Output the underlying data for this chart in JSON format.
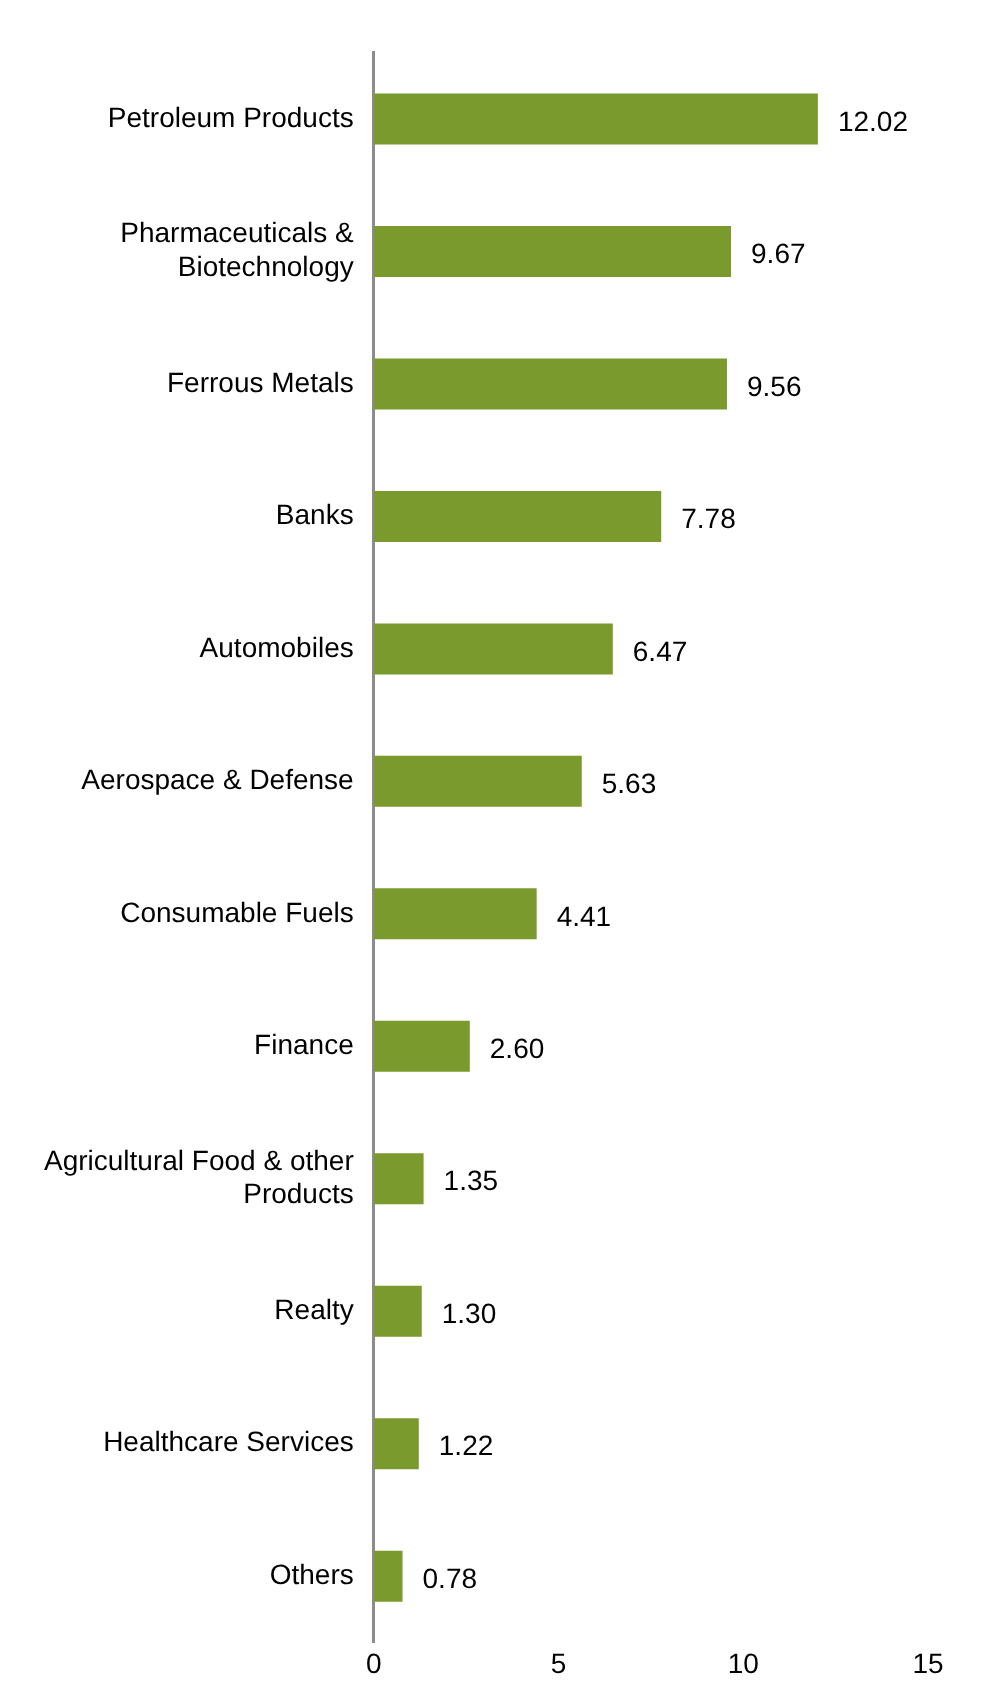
{
  "chart_data": {
    "type": "bar",
    "orientation": "horizontal",
    "categories": [
      "Petroleum Products",
      "Pharmaceuticals & Biotechnology",
      "Ferrous Metals",
      "Banks",
      "Automobiles",
      "Aerospace & Defense",
      "Consumable Fuels",
      "Finance",
      "Agricultural Food & other Products",
      "Realty",
      "Healthcare Services",
      "Others"
    ],
    "values": [
      12.02,
      9.67,
      9.56,
      7.78,
      6.47,
      5.63,
      4.41,
      2.6,
      1.35,
      1.3,
      1.22,
      0.78
    ],
    "value_labels": [
      "12.02",
      "9.67",
      "9.56",
      "7.78",
      "6.47",
      "5.63",
      "4.41",
      "2.60",
      "1.35",
      "1.30",
      "1.22",
      "0.78"
    ],
    "color": "#7b9a2e",
    "xlim": [
      0,
      15
    ],
    "xticks": [
      0,
      5,
      10,
      15
    ],
    "grid": false,
    "legend": false
  }
}
